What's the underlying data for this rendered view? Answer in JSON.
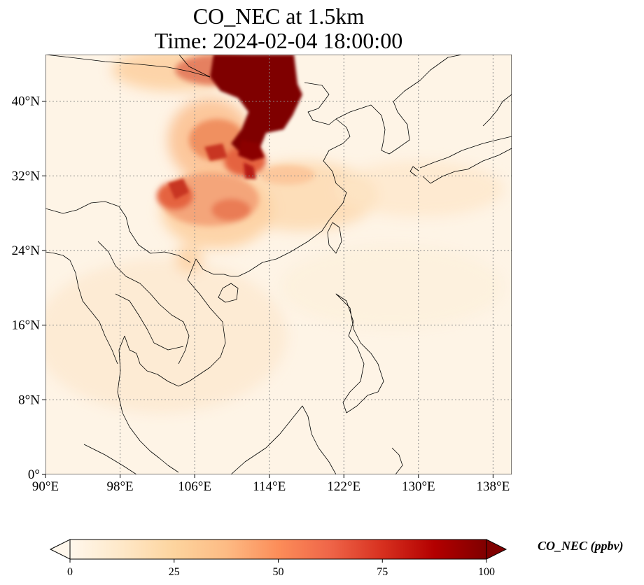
{
  "title": {
    "line1": "CO_NEC at 1.5km",
    "line2": "Time: 2024-02-04 18:00:00"
  },
  "map": {
    "lon_range": [
      90,
      140
    ],
    "lat_range": [
      0,
      45
    ],
    "lon_ticks": [
      {
        "value": 90,
        "label": "90°E"
      },
      {
        "value": 98,
        "label": "98°E"
      },
      {
        "value": 106,
        "label": "106°E"
      },
      {
        "value": 114,
        "label": "114°E"
      },
      {
        "value": 122,
        "label": "122°E"
      },
      {
        "value": 130,
        "label": "130°E"
      },
      {
        "value": 138,
        "label": "138°E"
      }
    ],
    "lat_ticks": [
      {
        "value": 0,
        "label": "0°"
      },
      {
        "value": 8,
        "label": "8°N"
      },
      {
        "value": 16,
        "label": "16°N"
      },
      {
        "value": 24,
        "label": "24°N"
      },
      {
        "value": 32,
        "label": "32°N"
      },
      {
        "value": 40,
        "label": "40°N"
      }
    ],
    "gridlines": true,
    "colormap": "OrRd",
    "colors": {
      "low": "#fff7ec",
      "mid": "#fdbb84",
      "high": "#7f0000",
      "coast": "#000000",
      "grid": "#8c8c8c"
    }
  },
  "colorbar": {
    "label": "CO_NEC (ppbv)",
    "range": [
      0,
      100
    ],
    "ticks": [
      {
        "value": 0,
        "label": "0"
      },
      {
        "value": 25,
        "label": "25"
      },
      {
        "value": 50,
        "label": "50"
      },
      {
        "value": 75,
        "label": "75"
      },
      {
        "value": 100,
        "label": "100"
      }
    ],
    "extend": "both"
  }
}
